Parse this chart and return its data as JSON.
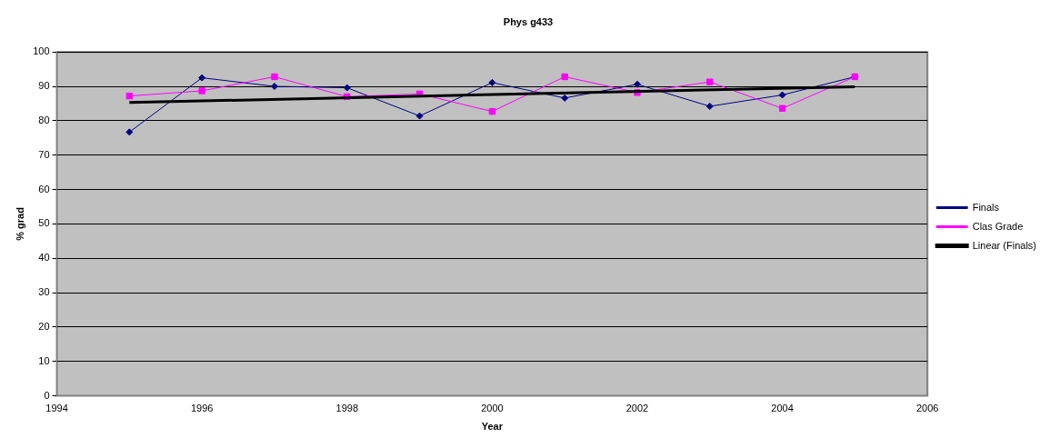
{
  "chart_data": {
    "type": "line",
    "title": "Phys g433",
    "xlabel": "Year",
    "ylabel": "% grad",
    "x": [
      1995,
      1996,
      1997,
      1998,
      1999,
      2000,
      2001,
      2002,
      2003,
      2004,
      2005
    ],
    "series": [
      {
        "name": "Finals",
        "color": "#000080",
        "marker": "diamond",
        "values": [
          76.7,
          92.5,
          90,
          89.6,
          81.4,
          91.1,
          86.6,
          90.6,
          84.2,
          87.5,
          92.8
        ]
      },
      {
        "name": "Clas Grade",
        "color": "#ff00ff",
        "marker": "square",
        "values": [
          87.2,
          88.7,
          92.8,
          87.0,
          87.8,
          82.7,
          92.8,
          88.2,
          91.3,
          83.6,
          92.8
        ]
      },
      {
        "name": "Linear (Finals)",
        "color": "#000000",
        "marker": "none",
        "x": [
          1995,
          2005
        ],
        "values": [
          85.3,
          89.9
        ]
      }
    ],
    "xlim": [
      1994,
      2006
    ],
    "xticks": [
      1994,
      1996,
      1998,
      2000,
      2002,
      2004,
      2006
    ],
    "ylim": [
      0,
      100
    ],
    "yticks": [
      0,
      10,
      20,
      30,
      40,
      50,
      60,
      70,
      80,
      90,
      100
    ],
    "grid": "y",
    "legend": "right"
  }
}
